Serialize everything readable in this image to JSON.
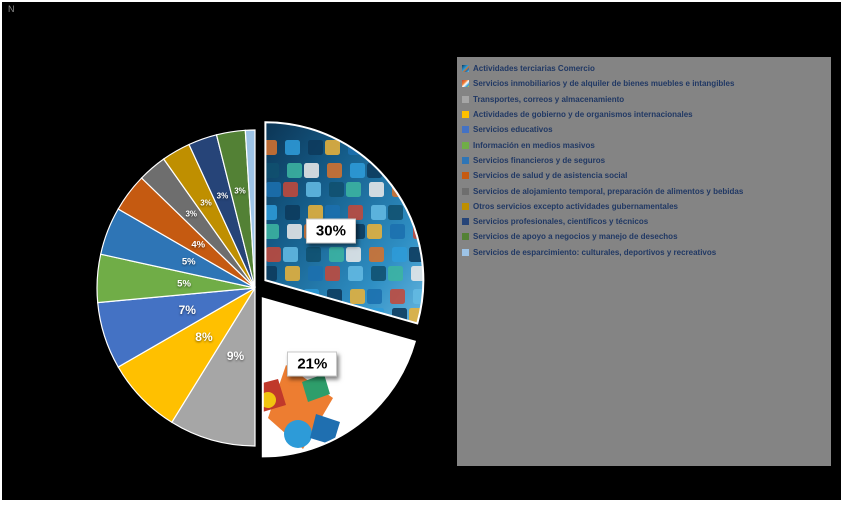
{
  "corner_mark": "N",
  "colors": {
    "background": "#000000",
    "legend_background": "#848484",
    "legend_text": "#203864",
    "callout_background": "#ffffff",
    "callout_text": "#000000",
    "slice_border": "#ffffff",
    "data_label_text": "#ffffff"
  },
  "chart_data": {
    "type": "pie",
    "unit": "%",
    "legend_position": "right",
    "start_angle_deg": 0,
    "background": "black",
    "slices": [
      {
        "label": "Actividades terciarias  Comercio",
        "value": 30,
        "display": "30%",
        "color": "picture-tech",
        "exploded": true,
        "callout": true
      },
      {
        "label": "Servicios inmobiliarios y de alquiler de bienes muebles e intangibles",
        "value": 21,
        "display": "21%",
        "color": "picture-puzzle",
        "exploded": true,
        "callout": true
      },
      {
        "label": "Transportes, correos y almacenamiento",
        "value": 9,
        "display": "9%",
        "color": "#a6a6a6"
      },
      {
        "label": "Actividades de  gobierno  y de organismos internacionales",
        "value": 8,
        "display": "8%",
        "color": "#ffc000"
      },
      {
        "label": "Servicios educativos",
        "value": 7,
        "display": "7%",
        "color": "#4472c4"
      },
      {
        "label": "Información en medios masivos",
        "value": 5,
        "display": "5%",
        "color": "#70ad47"
      },
      {
        "label": "Servicios financieros y de seguros",
        "value": 5,
        "display": "5%",
        "color": "#2e75b6"
      },
      {
        "label": "Servicios de salud y de asistencia social",
        "value": 4,
        "display": "4%",
        "color": "#c55a11"
      },
      {
        "label": "Servicios de alojamiento temporal, preparación de alimentos y bebidas",
        "value": 3,
        "display": "3%",
        "color": "#6e6e6e"
      },
      {
        "label": "Otros servicios excepto actividades gubernamentales",
        "value": 3,
        "display": "3%",
        "color": "#bf8f00"
      },
      {
        "label": "Servicios profesionales, científicos y técnicos",
        "value": 3,
        "display": "3%",
        "color": "#264478"
      },
      {
        "label": "Servicios de apoyo a negocios y manejo de desechos",
        "value": 3,
        "display": "3%",
        "color": "#538135"
      },
      {
        "label": "Servicios de esparcimiento: culturales, deportivos y recreativos",
        "value": 1,
        "display": "",
        "color": "#9dc3e6"
      }
    ]
  }
}
